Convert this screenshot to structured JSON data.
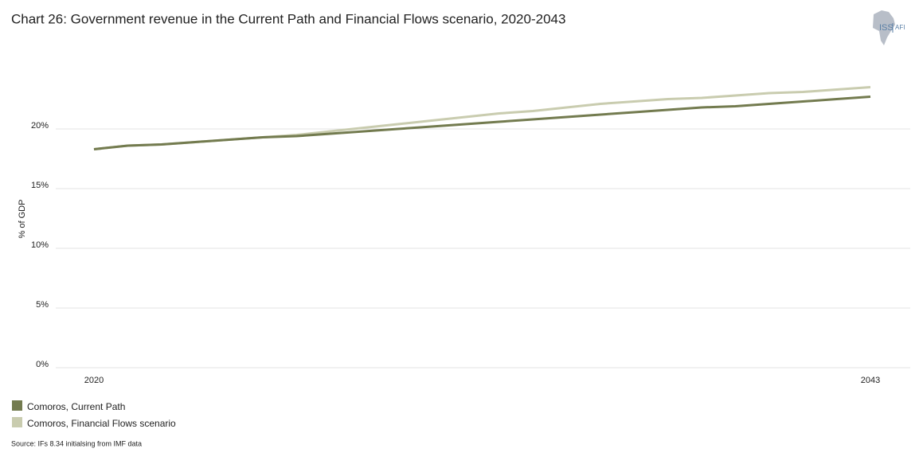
{
  "chart_data": {
    "type": "line",
    "title": "Chart 26: Government revenue in the Current Path and Financial Flows scenario, 2020-2043",
    "y_label": "% of GDP",
    "source": "Source: IFs 8.34 initialsing from IMF data",
    "logo": {
      "left": "ISS",
      "right": "AFI"
    },
    "x": [
      2020,
      2021,
      2022,
      2023,
      2024,
      2025,
      2026,
      2027,
      2028,
      2029,
      2030,
      2031,
      2032,
      2033,
      2034,
      2035,
      2036,
      2037,
      2038,
      2039,
      2040,
      2041,
      2042,
      2043
    ],
    "xlim": [
      2020,
      2043
    ],
    "xticks": [
      2020,
      2043
    ],
    "ylim": [
      0,
      25
    ],
    "yticks": [
      {
        "value": 0,
        "label": "0%"
      },
      {
        "value": 5,
        "label": "5%"
      },
      {
        "value": 10,
        "label": "10%"
      },
      {
        "value": 15,
        "label": "15%"
      },
      {
        "value": 20,
        "label": "20%"
      }
    ],
    "grid": true,
    "series": [
      {
        "name": "Comoros, Current Path",
        "color": "#737b4f",
        "values": [
          18.3,
          18.6,
          18.7,
          18.9,
          19.1,
          19.3,
          19.4,
          19.6,
          19.8,
          20.0,
          20.2,
          20.4,
          20.6,
          20.8,
          21.0,
          21.2,
          21.4,
          21.6,
          21.8,
          21.9,
          22.1,
          22.3,
          22.5,
          22.7
        ]
      },
      {
        "name": "Comoros, Financial Flows scenario",
        "color": "#c9ccaf",
        "values": [
          18.3,
          18.6,
          18.7,
          18.9,
          19.1,
          19.3,
          19.5,
          19.8,
          20.1,
          20.4,
          20.7,
          21.0,
          21.3,
          21.5,
          21.8,
          22.1,
          22.3,
          22.5,
          22.6,
          22.8,
          23.0,
          23.1,
          23.3,
          23.5
        ]
      }
    ]
  }
}
